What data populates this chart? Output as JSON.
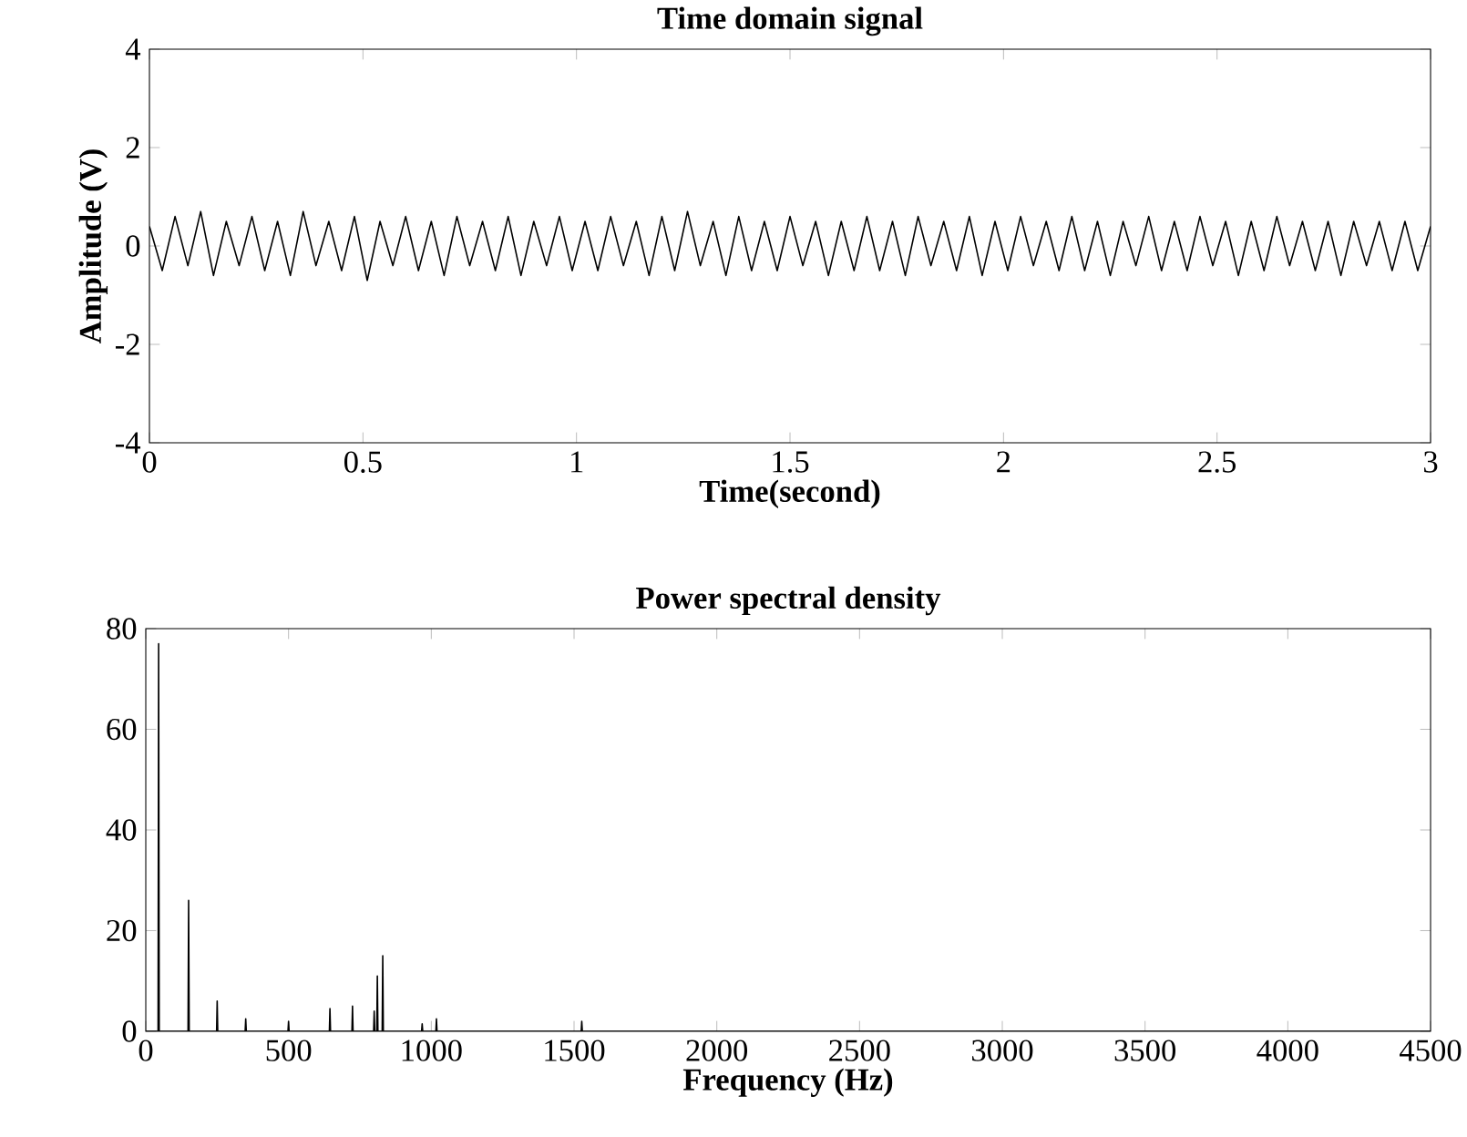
{
  "chart_data": [
    {
      "type": "line",
      "title": "Time domain signal",
      "xlabel": "Time(second)",
      "ylabel": "Amplitude (V)",
      "color": "#000000",
      "xlim": [
        0,
        3
      ],
      "ylim": [
        -4,
        4
      ],
      "xticks": [
        0,
        0.5,
        1,
        1.5,
        2,
        2.5,
        3
      ],
      "yticks": [
        -4,
        -2,
        0,
        2,
        4
      ],
      "x": [
        0,
        0.03,
        0.06,
        0.09,
        0.12,
        0.15,
        0.18,
        0.21,
        0.24,
        0.27,
        0.3,
        0.33,
        0.36,
        0.39,
        0.42,
        0.45,
        0.48,
        0.51,
        0.54,
        0.57,
        0.6,
        0.63,
        0.66,
        0.69,
        0.72,
        0.75,
        0.78,
        0.81,
        0.84,
        0.87,
        0.9,
        0.93,
        0.96,
        0.99,
        1.02,
        1.05,
        1.08,
        1.11,
        1.14,
        1.17,
        1.2,
        1.23,
        1.26,
        1.29,
        1.32,
        1.35,
        1.38,
        1.41,
        1.44,
        1.47,
        1.5,
        1.53,
        1.56,
        1.59,
        1.62,
        1.65,
        1.68,
        1.71,
        1.74,
        1.77,
        1.8,
        1.83,
        1.86,
        1.89,
        1.92,
        1.95,
        1.98,
        2.01,
        2.04,
        2.07,
        2.1,
        2.13,
        2.16,
        2.19,
        2.22,
        2.25,
        2.28,
        2.31,
        2.34,
        2.37,
        2.4,
        2.43,
        2.46,
        2.49,
        2.52,
        2.55,
        2.58,
        2.61,
        2.64,
        2.67,
        2.7,
        2.73,
        2.76,
        2.79,
        2.82,
        2.85,
        2.88,
        2.91,
        2.94,
        2.97,
        3
      ],
      "values": [
        0.4,
        -0.5,
        0.6,
        -0.4,
        0.7,
        -0.6,
        0.5,
        -0.4,
        0.6,
        -0.5,
        0.5,
        -0.6,
        0.7,
        -0.4,
        0.5,
        -0.5,
        0.6,
        -0.7,
        0.5,
        -0.4,
        0.6,
        -0.5,
        0.5,
        -0.6,
        0.6,
        -0.4,
        0.5,
        -0.5,
        0.6,
        -0.6,
        0.5,
        -0.4,
        0.6,
        -0.5,
        0.5,
        -0.5,
        0.6,
        -0.4,
        0.5,
        -0.6,
        0.6,
        -0.5,
        0.7,
        -0.4,
        0.5,
        -0.6,
        0.6,
        -0.5,
        0.5,
        -0.5,
        0.6,
        -0.4,
        0.5,
        -0.6,
        0.5,
        -0.5,
        0.6,
        -0.5,
        0.5,
        -0.6,
        0.6,
        -0.4,
        0.5,
        -0.5,
        0.6,
        -0.6,
        0.5,
        -0.5,
        0.6,
        -0.4,
        0.5,
        -0.5,
        0.6,
        -0.5,
        0.5,
        -0.6,
        0.5,
        -0.4,
        0.6,
        -0.5,
        0.5,
        -0.5,
        0.6,
        -0.4,
        0.5,
        -0.6,
        0.5,
        -0.5,
        0.6,
        -0.4,
        0.5,
        -0.5,
        0.5,
        -0.6,
        0.5,
        -0.4,
        0.5,
        -0.5,
        0.5,
        -0.5,
        0.4
      ]
    },
    {
      "type": "line",
      "title": "Power spectral density",
      "xlabel": "Frequency (Hz)",
      "color": "#000000",
      "xlim": [
        0,
        4500
      ],
      "ylim": [
        0,
        80
      ],
      "xticks": [
        0,
        500,
        1000,
        1500,
        2000,
        2500,
        3000,
        3500,
        4000,
        4500
      ],
      "yticks": [
        0,
        20,
        40,
        60,
        80
      ],
      "x": [
        0,
        43,
        45,
        47,
        148,
        150,
        152,
        248,
        250,
        252,
        348,
        350,
        352,
        498,
        500,
        502,
        643,
        645,
        647,
        722,
        724,
        726,
        798,
        800,
        802,
        809,
        811,
        813,
        828,
        830,
        832,
        966,
        968,
        970,
        1016,
        1018,
        1020,
        1525,
        1527,
        1529,
        4500
      ],
      "values": [
        0,
        0,
        77,
        0,
        0,
        26,
        0,
        0,
        6,
        0,
        0,
        2.5,
        0,
        0,
        2,
        0,
        0,
        4.5,
        0,
        0,
        5,
        0,
        0,
        4,
        0,
        0,
        11,
        0,
        0,
        15,
        0,
        0,
        1.5,
        0,
        0,
        2.5,
        0,
        0,
        2,
        0,
        0
      ]
    }
  ]
}
